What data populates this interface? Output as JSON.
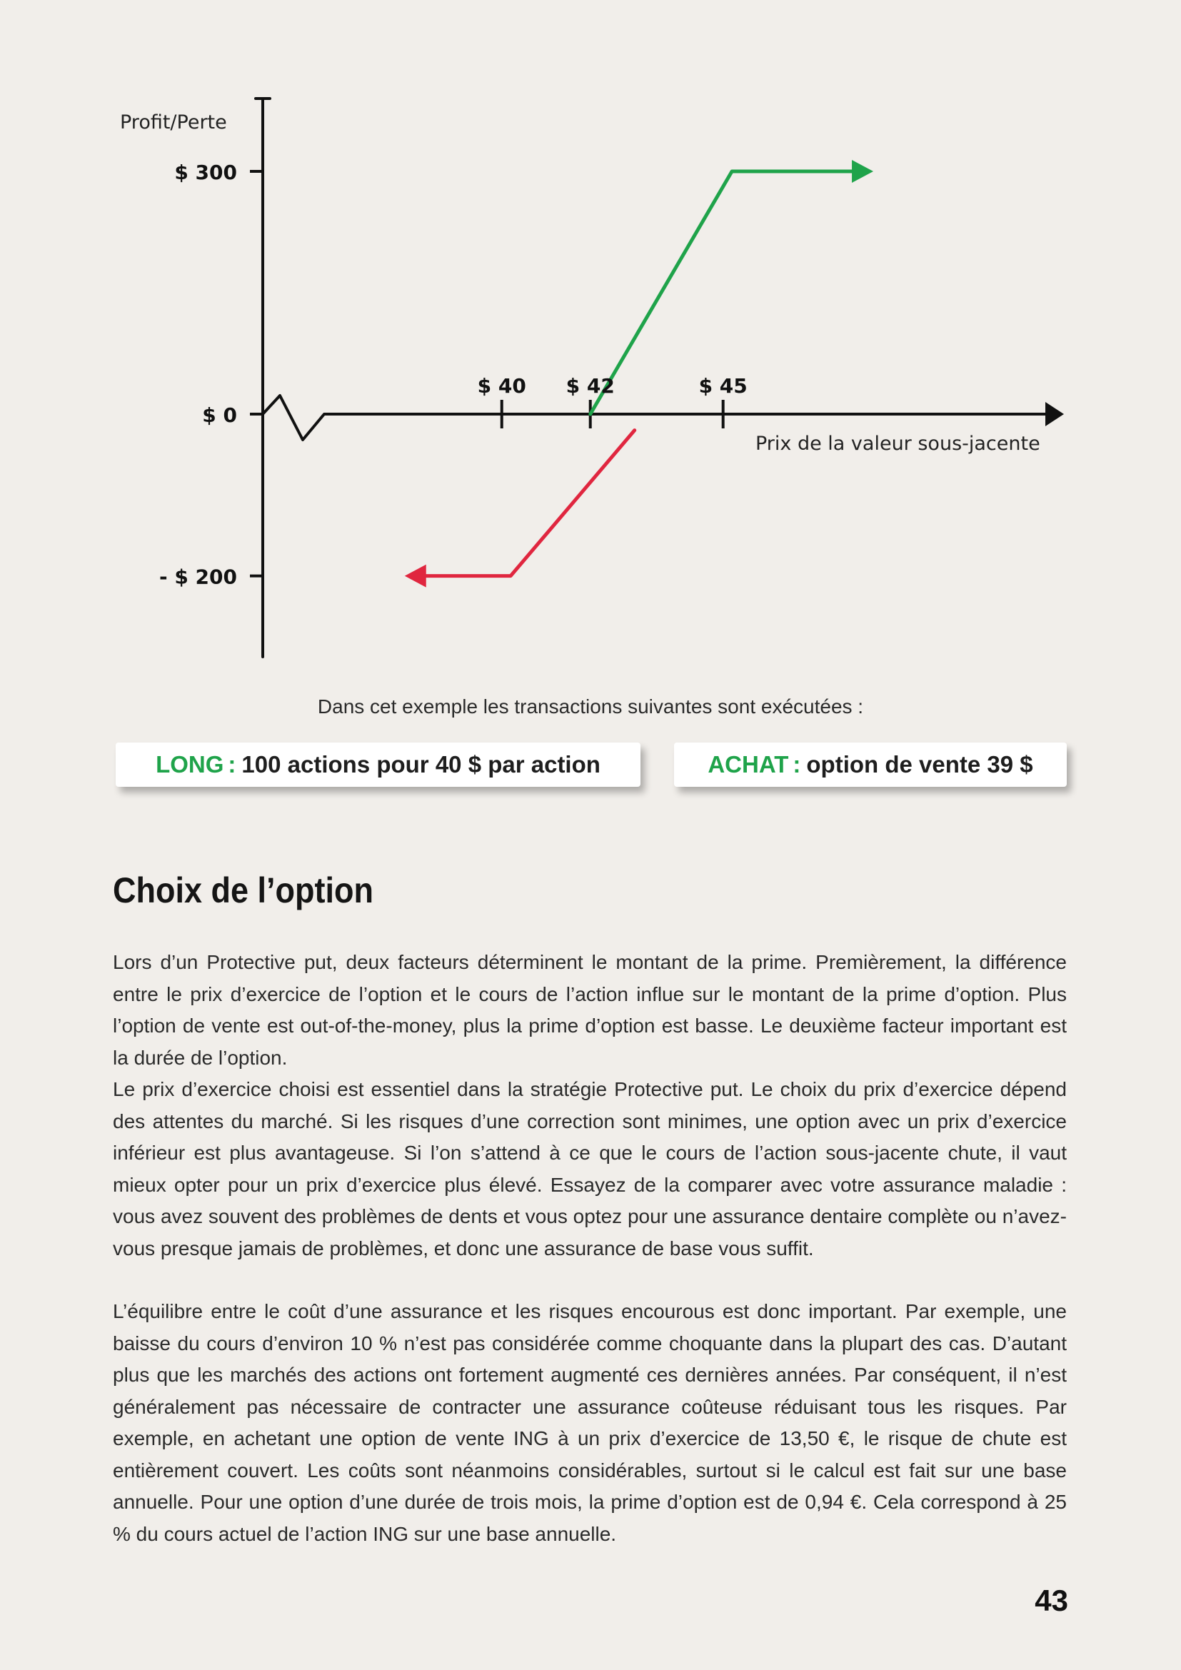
{
  "chart_data": {
    "type": "line",
    "ylabel": "Profit/Perte",
    "xlabel": "Prix de la valeur sous-jacente",
    "y_ticks": [
      {
        "value": 300,
        "label": "$ 300"
      },
      {
        "value": 0,
        "label": "$ 0"
      },
      {
        "value": -200,
        "label": "- $ 200"
      }
    ],
    "x_ticks": [
      {
        "value": 40,
        "label": "$ 40"
      },
      {
        "value": 42,
        "label": "$ 42"
      },
      {
        "value": 45,
        "label": "$ 45"
      }
    ],
    "ylim": [
      -300,
      390
    ],
    "xlim": [
      34.6,
      52.7
    ],
    "series": [
      {
        "color": "#e0263f",
        "x": [
          43.0,
          40.2,
          38.0
        ],
        "y": [
          -20,
          -200,
          -200
        ],
        "arrow": "end"
      },
      {
        "color": "#1fa34a",
        "x": [
          42.0,
          45.2,
          48.2
        ],
        "y": [
          0,
          300,
          300
        ],
        "arrow": "end"
      }
    ]
  },
  "caption": "Dans cet exemple les transactions suivantes sont exécutées :",
  "transactions": [
    {
      "tag": "LONG",
      "sep": ":",
      "text": "100 actions pour 40 $ par action"
    },
    {
      "tag": "ACHAT",
      "sep": ":",
      "text": "option de vente 39 $"
    }
  ],
  "heading": "Choix de l’option",
  "paragraphs": [
    "Lors d’un Protective put, deux facteurs déterminent le montant de la prime. Premièrement, la différence entre le prix d’exercice de l’option et le cours de l’action influe sur le montant de la prime d’option. Plus l’option de vente est out-of-the-money, plus la prime d’option est basse. Le deuxième facteur important est la durée de l’option.",
    "Le prix d’exercice choisi est essentiel dans la stratégie Protective put. Le choix du prix d’exercice dépend des attentes du marché. Si les risques d’une correction sont minimes, une option avec un prix d’exercice inférieur est plus avantageuse. Si l’on s’attend à ce que le cours de l’action sous-jacente chute, il vaut mieux opter pour un prix d’exercice plus élevé. Essayez de la comparer avec votre assurance maladie : vous avez souvent des problèmes de dents et vous optez pour une assurance dentaire complète ou n’avez-vous presque jamais de problèmes, et donc une assurance de base vous suffit.",
    "L’équilibre entre le coût d’une assurance et les risques encourous est donc important. Par exemple, une baisse du cours d’environ 10 % n’est pas considérée comme choquante dans la plupart des cas. D’autant plus que les marchés des actions ont fortement augmenté ces dernières années. Par conséquent, il n’est généralement pas nécessaire de contracter une assurance coûteuse réduisant tous les risques. Par exemple, en achetant une option de vente ING à un prix d’exercice de 13,50 €, le risque de chute est entièrement couvert. Les coûts sont néanmoins considérables, surtout si le calcul est fait sur une base annuelle. Pour une option d’une durée de trois mois, la prime d’option est de 0,94 €. Cela correspond à 25 % du cours actuel de l’action ING sur une base annuelle."
  ],
  "page_number": "43"
}
